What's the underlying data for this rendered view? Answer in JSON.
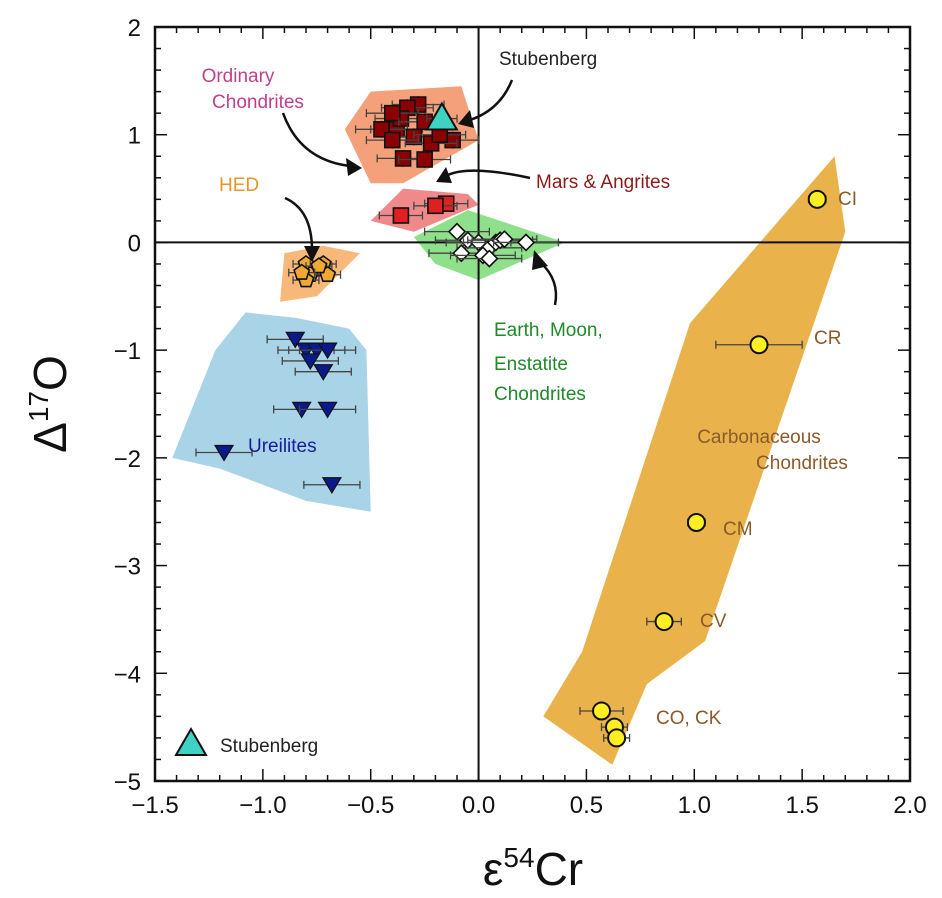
{
  "chart_data": {
    "type": "scatter",
    "xlabel": "ε⁵⁴Cr",
    "xlabel_main": "ε",
    "xlabel_sup": "54",
    "xlabel_tail": "Cr",
    "ylabel": "Δ¹⁷O",
    "ylabel_main": "Δ",
    "ylabel_sup": "17",
    "ylabel_tail": "O",
    "xlim": [
      -1.5,
      2.0
    ],
    "ylim": [
      -5,
      2
    ],
    "x_ticks": [
      "−1.5",
      "−1.0",
      "−0.5",
      "0.0",
      "0.5",
      "1.0",
      "1.5",
      "2.0"
    ],
    "x_tick_values": [
      -1.5,
      -1.0,
      -0.5,
      0.0,
      0.5,
      1.0,
      1.5,
      2.0
    ],
    "y_ticks": [
      "2",
      "1",
      "0",
      "−1",
      "−2",
      "−3",
      "−4",
      "−5"
    ],
    "y_tick_values": [
      2,
      1,
      0,
      -1,
      -2,
      -3,
      -4,
      -5
    ],
    "reference_lines": {
      "x": 0,
      "y": 0
    },
    "regions": [
      {
        "name": "Ordinary Chondrites",
        "color": "#f4a07a",
        "polygon": [
          [
            -0.62,
            1.05
          ],
          [
            -0.5,
            1.4
          ],
          [
            -0.08,
            1.45
          ],
          [
            0.0,
            0.95
          ],
          [
            -0.35,
            0.55
          ],
          [
            -0.5,
            0.55
          ]
        ]
      },
      {
        "name": "Mars & Angrites",
        "color": "#f08a8a",
        "polygon": [
          [
            -0.5,
            0.2
          ],
          [
            -0.35,
            0.5
          ],
          [
            -0.05,
            0.45
          ],
          [
            0.0,
            0.35
          ],
          [
            -0.3,
            0.1
          ]
        ]
      },
      {
        "name": "Earth, Moon, Enstatite Chondrites",
        "color": "#8fe08a",
        "polygon": [
          [
            -0.3,
            0.05
          ],
          [
            -0.05,
            0.3
          ],
          [
            0.4,
            0.0
          ],
          [
            0.0,
            -0.35
          ],
          [
            -0.2,
            -0.2
          ]
        ]
      },
      {
        "name": "HED",
        "color": "#f7b87a",
        "polygon": [
          [
            -0.9,
            -0.1
          ],
          [
            -0.72,
            -0.03
          ],
          [
            -0.55,
            -0.1
          ],
          [
            -0.75,
            -0.5
          ],
          [
            -0.92,
            -0.55
          ]
        ]
      },
      {
        "name": "Ureilites",
        "color": "#a9d3e6",
        "polygon": [
          [
            -1.42,
            -2.0
          ],
          [
            -1.22,
            -1.0
          ],
          [
            -1.08,
            -0.65
          ],
          [
            -0.85,
            -0.7
          ],
          [
            -0.6,
            -0.8
          ],
          [
            -0.52,
            -1.0
          ],
          [
            -0.5,
            -2.5
          ],
          [
            -0.8,
            -2.4
          ],
          [
            -1.2,
            -2.1
          ]
        ]
      },
      {
        "name": "Carbonaceous Chondrites",
        "color": "#e9b24a",
        "polygon": [
          [
            1.65,
            0.8
          ],
          [
            1.7,
            0.1
          ],
          [
            1.05,
            -3.7
          ],
          [
            0.78,
            -4.1
          ],
          [
            0.62,
            -4.85
          ],
          [
            0.3,
            -4.4
          ],
          [
            0.48,
            -3.8
          ],
          [
            0.98,
            -0.75
          ]
        ]
      }
    ],
    "series": [
      {
        "name": "Ordinary Chondrites",
        "marker": "square",
        "color": "#8b0000",
        "points": [
          [
            -0.28,
            1.28
          ],
          [
            -0.33,
            1.25
          ],
          [
            -0.38,
            1.05
          ],
          [
            -0.36,
            1.15
          ],
          [
            -0.4,
            1.2
          ],
          [
            -0.25,
            1.12
          ],
          [
            -0.45,
            1.05
          ],
          [
            -0.3,
            0.98
          ],
          [
            -0.12,
            0.95
          ],
          [
            -0.22,
            0.92
          ],
          [
            -0.4,
            0.95
          ],
          [
            -0.35,
            0.78
          ],
          [
            -0.25,
            0.77
          ],
          [
            -0.18,
            1.0
          ]
        ],
        "xerr": 0.12,
        "yerr": 0.08
      },
      {
        "name": "Mars & Angrites",
        "marker": "square",
        "color": "#e02020",
        "points": [
          [
            -0.36,
            0.25
          ],
          [
            -0.15,
            0.36
          ],
          [
            -0.2,
            0.34
          ]
        ],
        "xerr": 0.1,
        "yerr": 0.06
      },
      {
        "name": "Earth, Moon, Enstatite Chondrites",
        "marker": "diamond",
        "color": "#ffffff",
        "points": [
          [
            -0.1,
            0.1
          ],
          [
            -0.05,
            0.02
          ],
          [
            0.0,
            0.0
          ],
          [
            0.05,
            -0.05
          ],
          [
            0.08,
            0.0
          ],
          [
            0.1,
            0.02
          ],
          [
            0.12,
            0.03
          ],
          [
            -0.08,
            -0.1
          ],
          [
            0.02,
            -0.12
          ],
          [
            0.22,
            0.0
          ],
          [
            0.05,
            -0.15
          ]
        ],
        "xerr": 0.15,
        "yerr": 0.05
      },
      {
        "name": "HED",
        "marker": "pentagon",
        "color": "#f0a830",
        "points": [
          [
            -0.8,
            -0.2
          ],
          [
            -0.75,
            -0.25
          ],
          [
            -0.72,
            -0.2
          ],
          [
            -0.78,
            -0.3
          ],
          [
            -0.7,
            -0.3
          ],
          [
            -0.8,
            -0.35
          ],
          [
            -0.74,
            -0.22
          ],
          [
            -0.82,
            -0.28
          ]
        ],
        "xerr": 0.06,
        "yerr": 0.05
      },
      {
        "name": "Ureilites",
        "marker": "triangle-down",
        "color": "#0a1a8c",
        "points": [
          [
            -0.85,
            -0.9
          ],
          [
            -0.8,
            -1.0
          ],
          [
            -0.75,
            -1.0
          ],
          [
            -0.7,
            -1.0
          ],
          [
            -0.78,
            -1.1
          ],
          [
            -0.72,
            -1.2
          ],
          [
            -0.82,
            -1.55
          ],
          [
            -0.7,
            -1.55
          ],
          [
            -1.18,
            -1.95
          ],
          [
            -0.68,
            -2.25
          ]
        ],
        "xerr": 0.13,
        "yerr": 0.05
      },
      {
        "name": "Carbonaceous Chondrites",
        "marker": "circle",
        "color": "#ffee22",
        "points": [
          [
            1.57,
            0.4
          ],
          [
            1.3,
            -0.95
          ],
          [
            1.01,
            -2.6
          ],
          [
            0.86,
            -3.52
          ],
          [
            0.57,
            -4.35
          ],
          [
            0.63,
            -4.5
          ],
          [
            0.64,
            -4.6
          ]
        ],
        "xerr": [
          0.04,
          0.2,
          0.04,
          0.08,
          0.1,
          0.06,
          0.06
        ],
        "yerr": 0.05
      },
      {
        "name": "Stubenberg",
        "marker": "triangle-up",
        "color": "#3fd1c4",
        "points": [
          [
            -0.17,
            1.15
          ]
        ],
        "xerr": 0.07,
        "yerr": 0.08
      }
    ],
    "annotations": {
      "ordinary": [
        "Ordinary",
        "Chondrites"
      ],
      "stubenberg_top": "Stubenberg",
      "mars": "Mars & Angrites",
      "hed": "HED",
      "earth": [
        "Earth, Moon,",
        "Enstatite",
        "Chondrites"
      ],
      "ureilites": "Ureilites",
      "carbonaceous": [
        "Carbonaceous",
        "Chondrites"
      ],
      "ci": "CI",
      "cr": "CR",
      "cm": "CM",
      "cv": "CV",
      "coc": "CO, CK",
      "legend_stubenberg": "Stubenberg"
    },
    "colors": {
      "ordinary_text": "#c0408a",
      "stubenberg_text": "#222222",
      "mars_text": "#8b1a1a",
      "hed_text": "#e8952a",
      "earth_text": "#1f8a2a",
      "ureilites_text": "#1a1a9c",
      "carb_text": "#8b5a2b"
    }
  }
}
